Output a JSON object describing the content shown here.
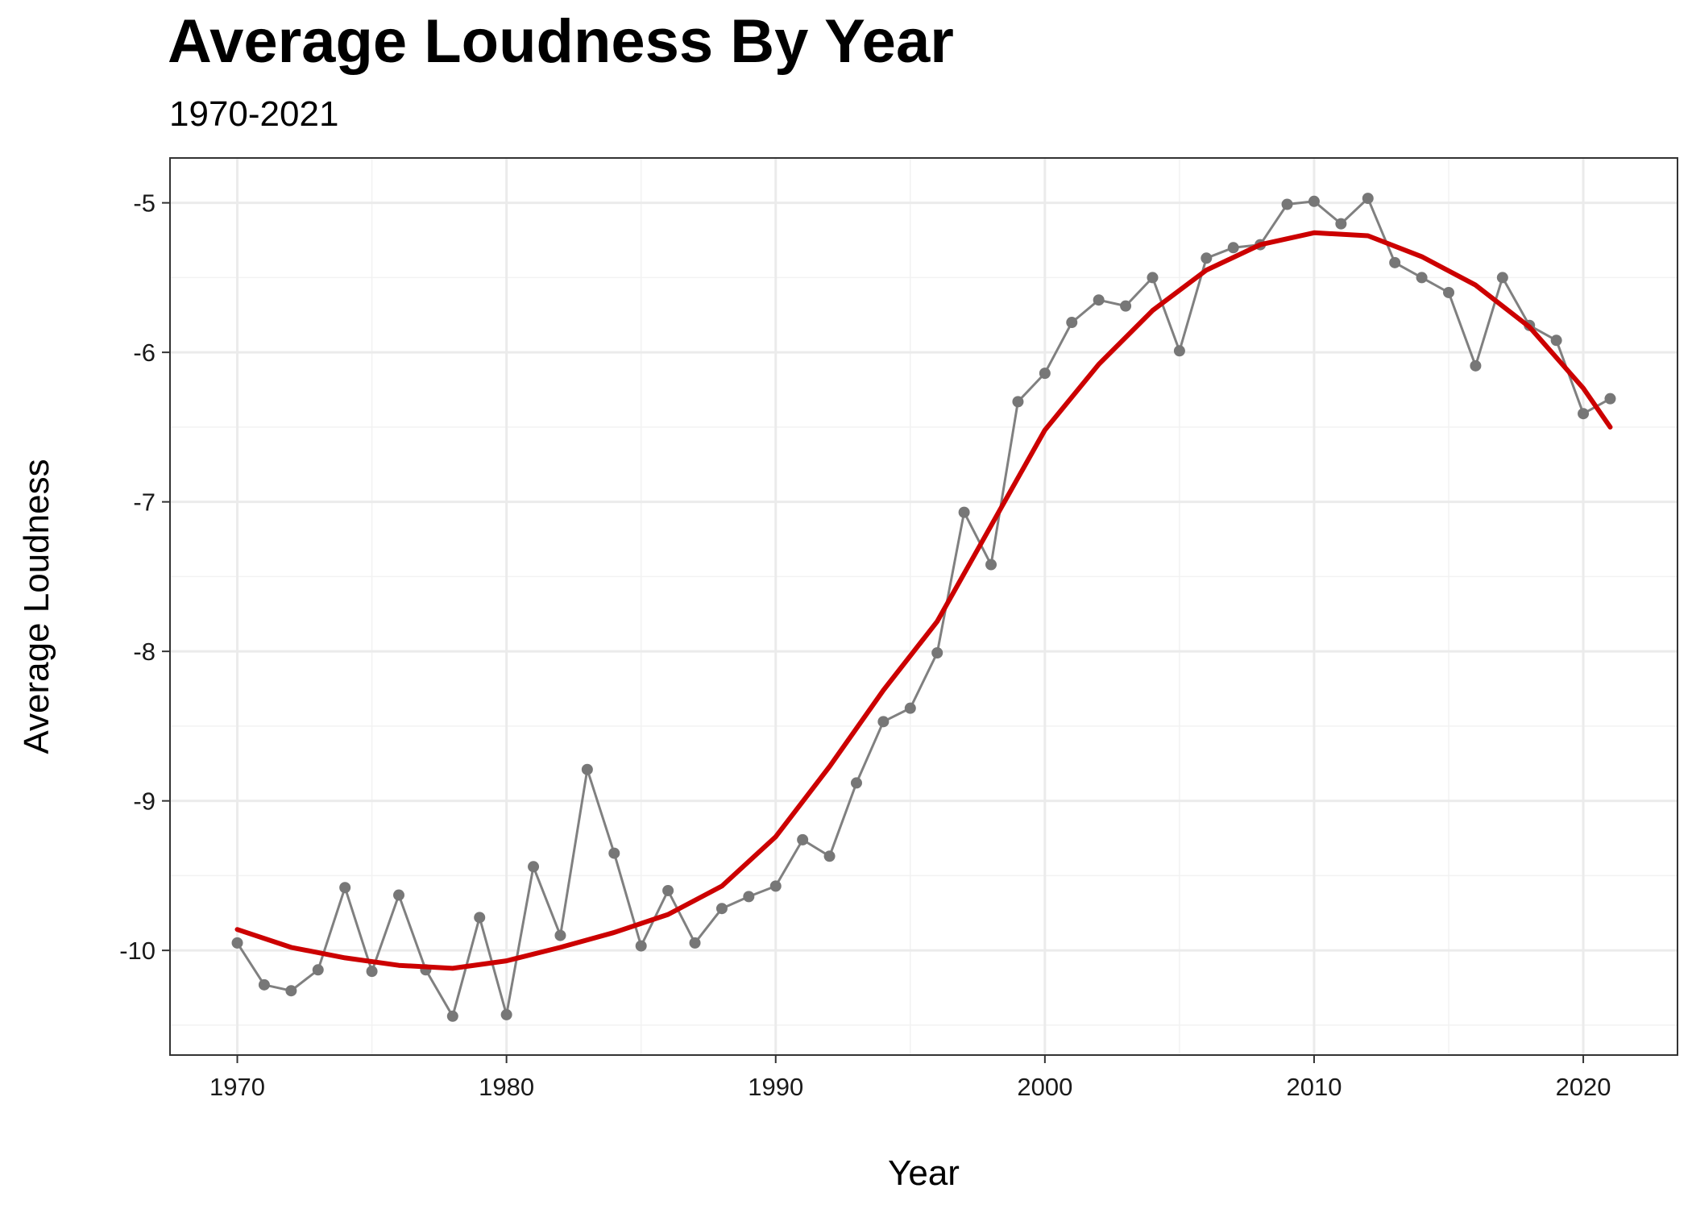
{
  "chart_data": {
    "type": "line",
    "title": "Average Loudness By Year",
    "subtitle": "1970-2021",
    "xlabel": "Year",
    "ylabel": "Average Loudness",
    "xlim": [
      1967.5,
      2023.5
    ],
    "ylim": [
      -10.7,
      -4.7
    ],
    "x_ticks": [
      1970,
      1980,
      1990,
      2000,
      2010,
      2020
    ],
    "y_ticks": [
      -10,
      -9,
      -8,
      -7,
      -6,
      -5
    ],
    "grid": true,
    "legend": "none",
    "series": [
      {
        "kind": "line+points",
        "color": "#808080",
        "x": [
          1970,
          1971,
          1972,
          1973,
          1974,
          1975,
          1976,
          1977,
          1978,
          1979,
          1980,
          1981,
          1982,
          1983,
          1984,
          1985,
          1986,
          1987,
          1988,
          1989,
          1990,
          1991,
          1992,
          1993,
          1994,
          1995,
          1996,
          1997,
          1998,
          1999,
          2000,
          2001,
          2002,
          2003,
          2004,
          2005,
          2006,
          2007,
          2008,
          2009,
          2010,
          2011,
          2012,
          2013,
          2014,
          2015,
          2016,
          2017,
          2018,
          2019,
          2020,
          2021
        ],
        "y": [
          -9.95,
          -10.23,
          -10.27,
          -10.13,
          -9.58,
          -10.14,
          -9.63,
          -10.13,
          -10.44,
          -9.78,
          -10.43,
          -9.44,
          -9.9,
          -8.79,
          -9.35,
          -9.97,
          -9.6,
          -9.95,
          -9.72,
          -9.64,
          -9.57,
          -9.26,
          -9.37,
          -8.88,
          -8.47,
          -8.38,
          -8.01,
          -7.07,
          -7.42,
          -6.33,
          -6.14,
          -5.8,
          -5.65,
          -5.69,
          -5.5,
          -5.99,
          -5.37,
          -5.3,
          -5.28,
          -5.01,
          -4.99,
          -5.14,
          -4.97,
          -5.4,
          -5.5,
          -5.6,
          -6.09,
          -5.5,
          -5.82,
          -5.92,
          -6.41,
          -6.31
        ]
      },
      {
        "kind": "smooth",
        "color": "#cc0000",
        "x": [
          1970,
          1972,
          1974,
          1976,
          1978,
          1980,
          1982,
          1984,
          1986,
          1988,
          1990,
          1992,
          1994,
          1996,
          1998,
          2000,
          2002,
          2004,
          2006,
          2008,
          2010,
          2012,
          2014,
          2016,
          2018,
          2020,
          2021
        ],
        "y": [
          -9.86,
          -9.98,
          -10.05,
          -10.1,
          -10.12,
          -10.07,
          -9.98,
          -9.88,
          -9.76,
          -9.57,
          -9.24,
          -8.77,
          -8.26,
          -7.8,
          -7.16,
          -6.52,
          -6.08,
          -5.72,
          -5.45,
          -5.28,
          -5.2,
          -5.22,
          -5.36,
          -5.55,
          -5.83,
          -6.24,
          -6.5
        ]
      }
    ]
  }
}
